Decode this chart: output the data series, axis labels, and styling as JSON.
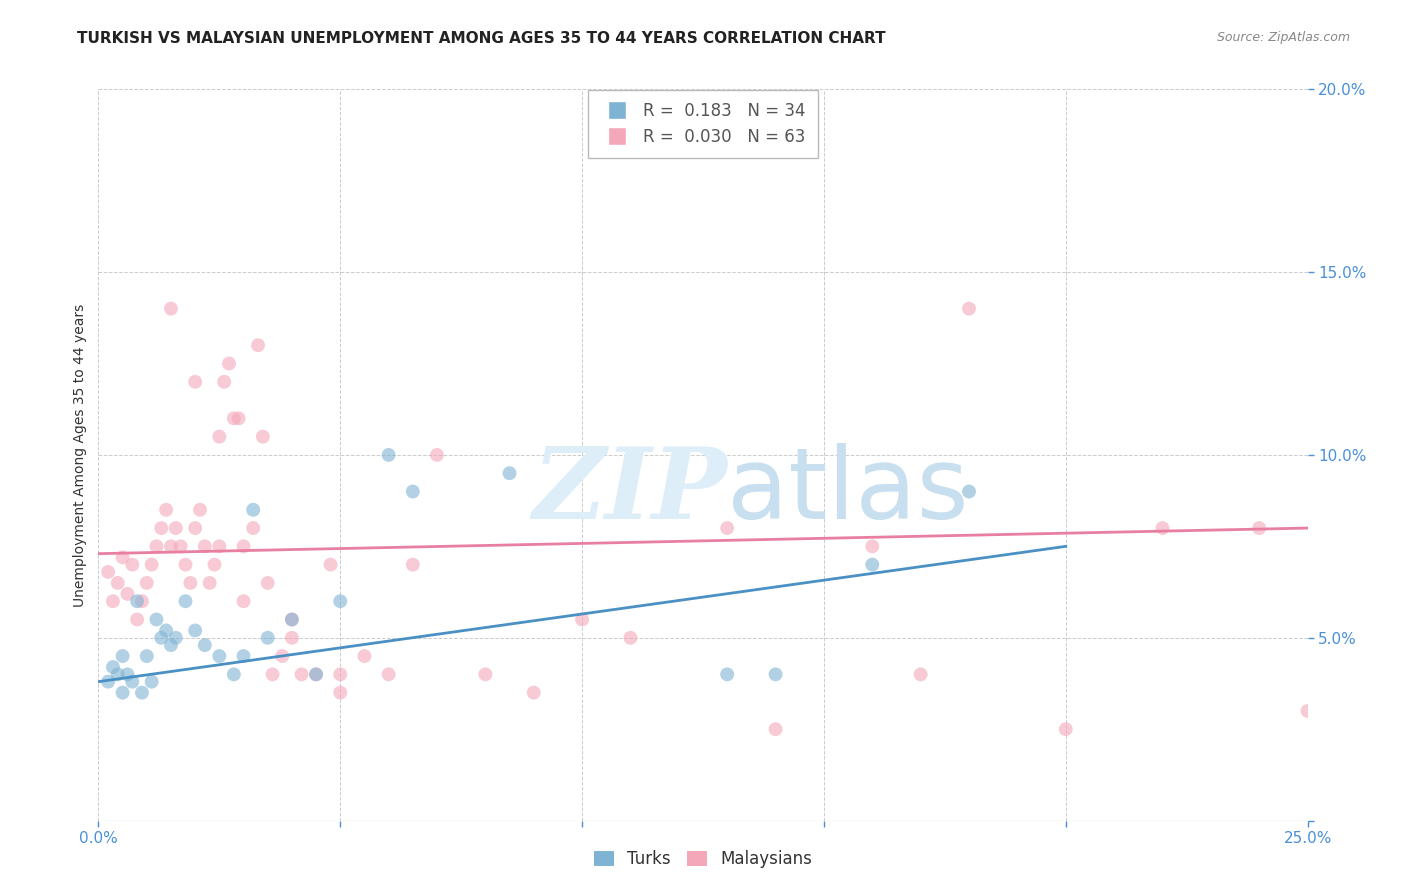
{
  "title": "TURKISH VS MALAYSIAN UNEMPLOYMENT AMONG AGES 35 TO 44 YEARS CORRELATION CHART",
  "source": "Source: ZipAtlas.com",
  "ylabel": "Unemployment Among Ages 35 to 44 years",
  "xlim": [
    0,
    0.25
  ],
  "ylim": [
    0,
    0.2
  ],
  "xticks": [
    0.0,
    0.05,
    0.1,
    0.15,
    0.2,
    0.25
  ],
  "yticks": [
    0.0,
    0.05,
    0.1,
    0.15,
    0.2
  ],
  "xticklabels": [
    "0.0%",
    "",
    "",
    "",
    "",
    "25.0%"
  ],
  "yticklabels": [
    "",
    "5.0%",
    "10.0%",
    "15.0%",
    "20.0%"
  ],
  "background_color": "#ffffff",
  "grid_color": "#cccccc",
  "turks_color": "#7fb3d3",
  "malaysians_color": "#f4a7b9",
  "turks_R": "0.183",
  "turks_N": "34",
  "malaysians_R": "0.030",
  "malaysians_N": "63",
  "turks_scatter_x": [
    0.002,
    0.003,
    0.004,
    0.005,
    0.005,
    0.006,
    0.007,
    0.008,
    0.009,
    0.01,
    0.011,
    0.012,
    0.013,
    0.014,
    0.015,
    0.016,
    0.018,
    0.02,
    0.022,
    0.025,
    0.028,
    0.03,
    0.032,
    0.035,
    0.04,
    0.045,
    0.05,
    0.06,
    0.065,
    0.085,
    0.13,
    0.14,
    0.16,
    0.18
  ],
  "turks_scatter_y": [
    0.038,
    0.042,
    0.04,
    0.045,
    0.035,
    0.04,
    0.038,
    0.06,
    0.035,
    0.045,
    0.038,
    0.055,
    0.05,
    0.052,
    0.048,
    0.05,
    0.06,
    0.052,
    0.048,
    0.045,
    0.04,
    0.045,
    0.085,
    0.05,
    0.055,
    0.04,
    0.06,
    0.1,
    0.09,
    0.095,
    0.04,
    0.04,
    0.07,
    0.09
  ],
  "malaysians_scatter_x": [
    0.002,
    0.003,
    0.004,
    0.005,
    0.006,
    0.007,
    0.008,
    0.009,
    0.01,
    0.011,
    0.012,
    0.013,
    0.014,
    0.015,
    0.016,
    0.017,
    0.018,
    0.019,
    0.02,
    0.021,
    0.022,
    0.023,
    0.024,
    0.025,
    0.026,
    0.027,
    0.028,
    0.029,
    0.03,
    0.032,
    0.033,
    0.034,
    0.035,
    0.036,
    0.038,
    0.04,
    0.042,
    0.045,
    0.048,
    0.05,
    0.055,
    0.06,
    0.065,
    0.07,
    0.08,
    0.09,
    0.1,
    0.11,
    0.13,
    0.14,
    0.16,
    0.17,
    0.18,
    0.2,
    0.22,
    0.24,
    0.25,
    0.015,
    0.02,
    0.025,
    0.03,
    0.04,
    0.05
  ],
  "malaysians_scatter_y": [
    0.068,
    0.06,
    0.065,
    0.072,
    0.062,
    0.07,
    0.055,
    0.06,
    0.065,
    0.07,
    0.075,
    0.08,
    0.085,
    0.075,
    0.08,
    0.075,
    0.07,
    0.065,
    0.08,
    0.085,
    0.075,
    0.065,
    0.07,
    0.075,
    0.12,
    0.125,
    0.11,
    0.11,
    0.06,
    0.08,
    0.13,
    0.105,
    0.065,
    0.04,
    0.045,
    0.05,
    0.04,
    0.04,
    0.07,
    0.04,
    0.045,
    0.04,
    0.07,
    0.1,
    0.04,
    0.035,
    0.055,
    0.05,
    0.08,
    0.025,
    0.075,
    0.04,
    0.14,
    0.025,
    0.08,
    0.08,
    0.03,
    0.14,
    0.12,
    0.105,
    0.075,
    0.055,
    0.035
  ],
  "turks_line_x": [
    0.0,
    0.2
  ],
  "turks_line_y": [
    0.038,
    0.075
  ],
  "malaysians_line_x": [
    0.0,
    0.25
  ],
  "malaysians_line_y": [
    0.073,
    0.08
  ],
  "watermark_zip": "ZIP",
  "watermark_atlas": "atlas",
  "watermark_color": "#ddeef8",
  "marker_size": 100,
  "marker_alpha": 0.6,
  "title_fontsize": 11,
  "axis_fontsize": 10,
  "tick_fontsize": 11,
  "legend_fontsize": 12,
  "source_fontsize": 9
}
